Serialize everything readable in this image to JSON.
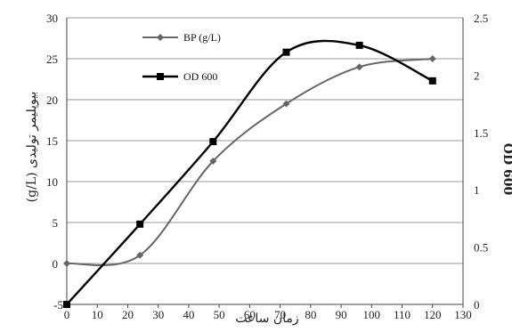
{
  "chart_data": {
    "type": "line",
    "xlabel": "زمان ساعت",
    "ylabel_left": "(g/L) بیوپلیمر تولیدی",
    "ylabel_right": "OD 600",
    "xlim": [
      0,
      130
    ],
    "xticks": [
      0,
      10,
      20,
      30,
      40,
      50,
      60,
      70,
      80,
      90,
      100,
      110,
      120,
      130
    ],
    "ylim_left": [
      -5,
      30
    ],
    "yticks_left": [
      0,
      5,
      10,
      15,
      20,
      25,
      30
    ],
    "ylim_right": [
      0,
      2.5
    ],
    "yticks_right": [
      0,
      0.5,
      1,
      1.5,
      2,
      2.5
    ],
    "ytick_labels_right": [
      "0",
      "0.5",
      "1",
      "1.5",
      "2",
      "2.5"
    ],
    "grid": "horizontal",
    "legend_position": "top-center",
    "series": [
      {
        "name": "BP (g/L)",
        "axis": "left",
        "marker": "diamond",
        "x": [
          0,
          24,
          48,
          72,
          96,
          120
        ],
        "values": [
          0,
          1,
          12.5,
          19.5,
          24,
          25
        ]
      },
      {
        "name": "OD 600",
        "axis": "right",
        "marker": "square",
        "x": [
          0,
          24,
          48,
          72,
          96,
          120
        ],
        "values": [
          0,
          0.7,
          1.42,
          2.2,
          2.26,
          1.95
        ]
      }
    ]
  }
}
